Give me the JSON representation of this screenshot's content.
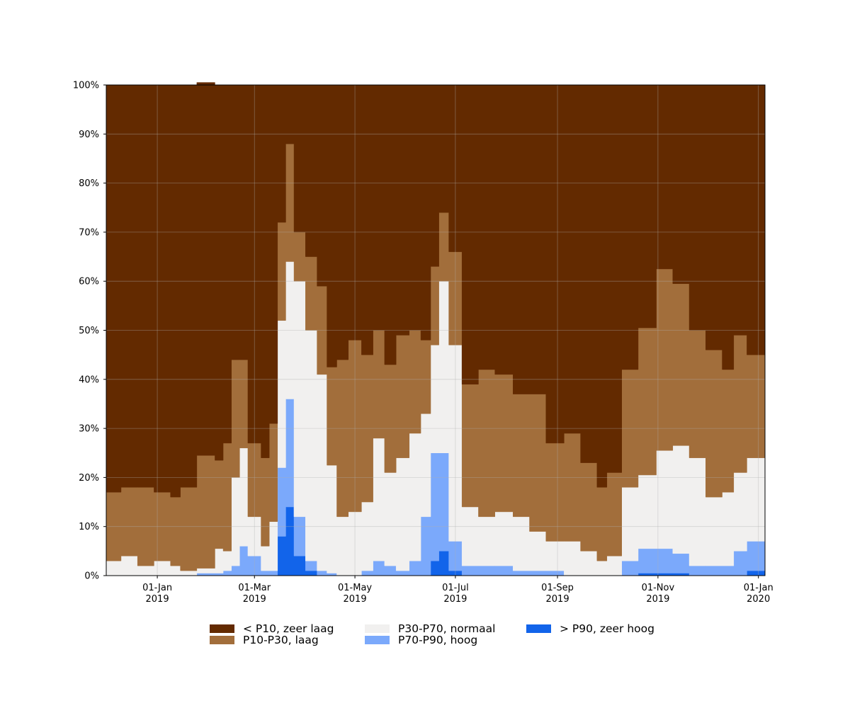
{
  "chart_data": {
    "type": "area",
    "stacked": true,
    "title": "",
    "xlabel": "",
    "ylabel": "",
    "x_range": [
      "2018-12-01",
      "2020-01-05"
    ],
    "ylim": [
      0,
      100
    ],
    "grid": true,
    "legend_position": "bottom",
    "y_ticks": [
      0,
      10,
      20,
      30,
      40,
      50,
      60,
      70,
      80,
      90,
      100
    ],
    "y_tick_labels": [
      "0%",
      "10%",
      "20%",
      "30%",
      "40%",
      "50%",
      "60%",
      "70%",
      "80%",
      "90%",
      "100%"
    ],
    "x_ticks": [
      {
        "date": "2019-01-01",
        "line1": "01-Jan",
        "line2": "2019"
      },
      {
        "date": "2019-03-01",
        "line1": "01-Mar",
        "line2": "2019"
      },
      {
        "date": "2019-05-01",
        "line1": "01-May",
        "line2": "2019"
      },
      {
        "date": "2019-07-01",
        "line1": "01-Jul",
        "line2": "2019"
      },
      {
        "date": "2019-09-01",
        "line1": "01-Sep",
        "line2": "2019"
      },
      {
        "date": "2019-11-01",
        "line1": "01-Nov",
        "line2": "2019"
      },
      {
        "date": "2020-01-01",
        "line1": "01-Jan",
        "line2": "2020"
      }
    ],
    "dates": [
      "2018-12-01",
      "2018-12-10",
      "2018-12-20",
      "2018-12-30",
      "2019-01-09",
      "2019-01-15",
      "2019-01-25",
      "2019-02-05",
      "2019-02-10",
      "2019-02-15",
      "2019-02-20",
      "2019-02-25",
      "2019-03-05",
      "2019-03-10",
      "2019-03-15",
      "2019-03-20",
      "2019-03-25",
      "2019-04-01",
      "2019-04-08",
      "2019-04-14",
      "2019-04-20",
      "2019-04-27",
      "2019-05-05",
      "2019-05-12",
      "2019-05-19",
      "2019-05-26",
      "2019-06-03",
      "2019-06-10",
      "2019-06-16",
      "2019-06-21",
      "2019-06-27",
      "2019-07-05",
      "2019-07-15",
      "2019-07-25",
      "2019-08-05",
      "2019-08-15",
      "2019-08-25",
      "2019-09-05",
      "2019-09-15",
      "2019-09-25",
      "2019-10-01",
      "2019-10-10",
      "2019-10-20",
      "2019-10-31",
      "2019-11-10",
      "2019-11-20",
      "2019-11-30",
      "2019-12-10",
      "2019-12-17",
      "2019-12-25",
      "2020-01-05"
    ],
    "series": [
      {
        "name": "> P90, zeer hoog",
        "color": "#1264ea",
        "values": [
          0,
          0,
          0,
          0,
          0,
          0,
          0,
          0,
          0,
          0,
          0,
          0,
          0,
          0,
          8,
          14,
          4,
          1,
          0,
          0,
          0,
          0,
          0,
          0,
          0,
          0,
          0,
          0,
          3,
          5,
          1,
          0,
          0,
          0,
          0,
          0,
          0,
          0,
          0,
          0,
          0,
          0,
          0.5,
          0.5,
          0.5,
          0,
          0,
          0,
          0,
          1,
          0
        ]
      },
      {
        "name": "P70-P90, hoog",
        "color": "#7ba9fb",
        "values": [
          0,
          0,
          0,
          0,
          0,
          0,
          0.5,
          0.5,
          1,
          2,
          6,
          4,
          1,
          1,
          14,
          22,
          8,
          2,
          1,
          0.5,
          0,
          0,
          1,
          3,
          2,
          1,
          3,
          12,
          22,
          20,
          6,
          2,
          2,
          2,
          1,
          1,
          1,
          0,
          0,
          0,
          0,
          3,
          5,
          5,
          4,
          2,
          2,
          2,
          5,
          6,
          3
        ]
      },
      {
        "name": "P30-P70, normaal",
        "color": "#f1f0ef",
        "values": [
          3,
          4,
          2,
          3,
          2,
          1,
          1,
          5,
          4,
          18,
          20,
          8,
          5,
          10,
          30,
          28,
          48,
          47,
          40,
          22,
          12,
          13,
          14,
          25,
          19,
          23,
          26,
          21,
          22,
          35,
          40,
          12,
          10,
          11,
          11,
          8,
          6,
          7,
          5,
          3,
          4,
          15,
          15,
          20,
          22,
          22,
          14,
          15,
          16,
          17,
          16
        ]
      },
      {
        "name": "P10-P30, laag",
        "color": "#a26e3b",
        "values": [
          14,
          14,
          16,
          14,
          14,
          17,
          23,
          18,
          22,
          24,
          18,
          15,
          18,
          20,
          20,
          24,
          10,
          15,
          18,
          20,
          32,
          35,
          30,
          22,
          22,
          25,
          21,
          15,
          16,
          14,
          19,
          25,
          30,
          28,
          25,
          28,
          20,
          22,
          18,
          15,
          17,
          24,
          30,
          37,
          33,
          26,
          30,
          25,
          28,
          21,
          25
        ]
      },
      {
        "name": "< P10, zeer laag",
        "color": "#632a00",
        "values": [
          83,
          82,
          82,
          83,
          84,
          82,
          76,
          76.5,
          73,
          56,
          56,
          73,
          76,
          69,
          28,
          12,
          30,
          35,
          41,
          57.5,
          56,
          52,
          55,
          50,
          57,
          51,
          50,
          52,
          37,
          26,
          34,
          61,
          58,
          59,
          63,
          63,
          73,
          71,
          77,
          82,
          79,
          58,
          49.5,
          37.5,
          40.5,
          50,
          54,
          58,
          51,
          55,
          56
        ]
      }
    ]
  },
  "legend": {
    "items": [
      {
        "label": "< P10, zeer laag",
        "color": "#632a00"
      },
      {
        "label": "P10-P30, laag",
        "color": "#a26e3b"
      },
      {
        "label": "P30-P70, normaal",
        "color": "#f1f0ef"
      },
      {
        "label": "P70-P90, hoog",
        "color": "#7ba9fb"
      },
      {
        "label": "> P90, zeer hoog",
        "color": "#1264ea"
      }
    ]
  }
}
